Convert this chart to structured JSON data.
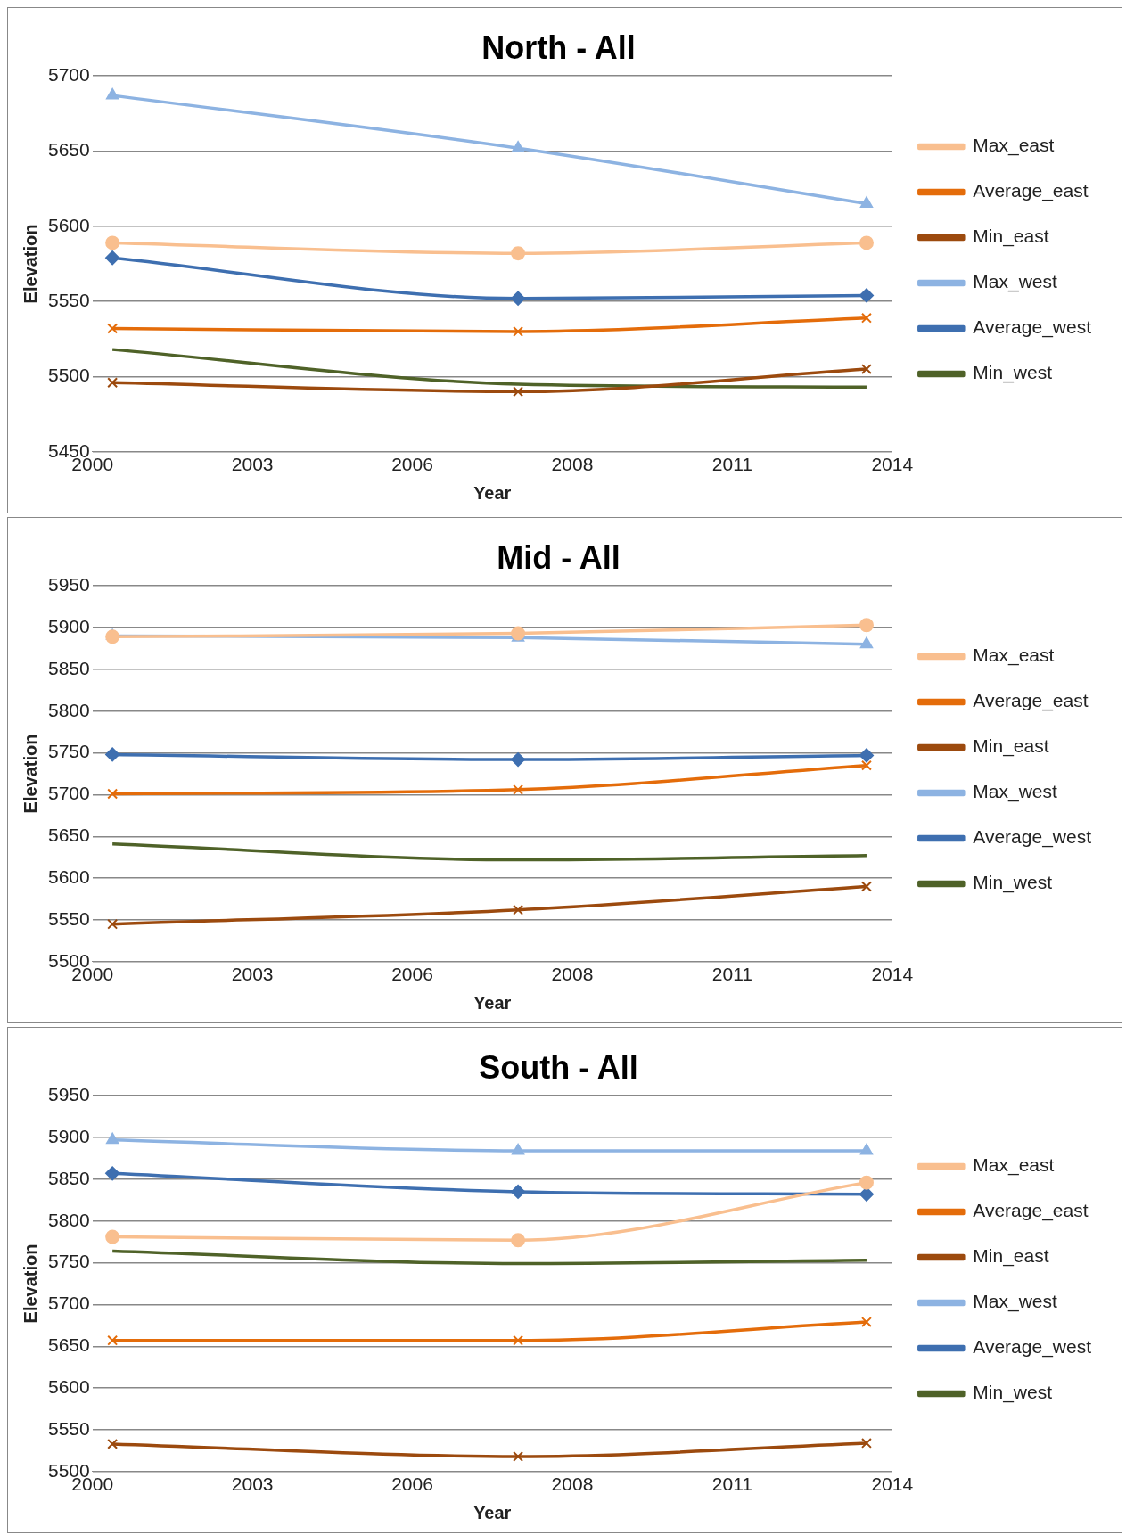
{
  "chart_data": [
    {
      "type": "line",
      "title": "North - All",
      "xlabel": "Year",
      "ylabel": "Elevation",
      "x": [
        2000.35,
        2007.45,
        2013.55
      ],
      "xlim": [
        2000,
        2014
      ],
      "xticks": [
        {
          "value": 2000,
          "label": "2000"
        },
        {
          "value": 2002.8,
          "label": "2003"
        },
        {
          "value": 2005.6,
          "label": "2006"
        },
        {
          "value": 2008.4,
          "label": "2008"
        },
        {
          "value": 2011.2,
          "label": "2011"
        },
        {
          "value": 2014,
          "label": "2014"
        }
      ],
      "ylim": [
        5450,
        5700
      ],
      "yticks": [
        5450,
        5500,
        5550,
        5600,
        5650,
        5700
      ],
      "grid": "y",
      "legend": "right",
      "series": [
        {
          "name": "Max_east",
          "color": "#f9bf8f",
          "marker": "circle",
          "values": [
            5589,
            5582,
            5589
          ]
        },
        {
          "name": "Average_east",
          "color": "#e46c0a",
          "marker": "cross",
          "values": [
            5532,
            5530,
            5539
          ]
        },
        {
          "name": "Min_east",
          "color": "#9c4a0e",
          "marker": "cross",
          "values": [
            5496,
            5490,
            5505
          ]
        },
        {
          "name": "Max_west",
          "color": "#8db3e2",
          "marker": "triangle",
          "values": [
            5687,
            5652,
            5615
          ]
        },
        {
          "name": "Average_west",
          "color": "#3e6fb0",
          "marker": "diamond",
          "values": [
            5579,
            5552,
            5554
          ]
        },
        {
          "name": "Min_west",
          "color": "#4f6228",
          "marker": "none",
          "values": [
            5518,
            5495,
            5493
          ]
        }
      ]
    },
    {
      "type": "line",
      "title": "Mid - All",
      "xlabel": "Year",
      "ylabel": "Elevation",
      "x": [
        2000.35,
        2007.45,
        2013.55
      ],
      "xlim": [
        2000,
        2014
      ],
      "xticks": [
        {
          "value": 2000,
          "label": "2000"
        },
        {
          "value": 2002.8,
          "label": "2003"
        },
        {
          "value": 2005.6,
          "label": "2006"
        },
        {
          "value": 2008.4,
          "label": "2008"
        },
        {
          "value": 2011.2,
          "label": "2011"
        },
        {
          "value": 2014,
          "label": "2014"
        }
      ],
      "ylim": [
        5500,
        5950
      ],
      "yticks": [
        5500,
        5550,
        5600,
        5650,
        5700,
        5750,
        5800,
        5850,
        5900,
        5950
      ],
      "grid": "y",
      "legend": "right",
      "series": [
        {
          "name": "Max_east",
          "color": "#f9bf8f",
          "marker": "circle",
          "values": [
            5889,
            5893,
            5903
          ]
        },
        {
          "name": "Average_east",
          "color": "#e46c0a",
          "marker": "cross",
          "values": [
            5701,
            5706,
            5735
          ]
        },
        {
          "name": "Min_east",
          "color": "#9c4a0e",
          "marker": "cross",
          "values": [
            5545,
            5562,
            5590
          ]
        },
        {
          "name": "Max_west",
          "color": "#8db3e2",
          "marker": "triangle",
          "values": [
            5890,
            5888,
            5880
          ]
        },
        {
          "name": "Average_west",
          "color": "#3e6fb0",
          "marker": "diamond",
          "values": [
            5748,
            5742,
            5747
          ]
        },
        {
          "name": "Min_west",
          "color": "#4f6228",
          "marker": "none",
          "values": [
            5641,
            5622,
            5627
          ]
        }
      ]
    },
    {
      "type": "line",
      "title": "South - All",
      "xlabel": "Year",
      "ylabel": "Elevation",
      "x": [
        2000.35,
        2007.45,
        2013.55
      ],
      "xlim": [
        2000,
        2014
      ],
      "xticks": [
        {
          "value": 2000,
          "label": "2000"
        },
        {
          "value": 2002.8,
          "label": "2003"
        },
        {
          "value": 2005.6,
          "label": "2006"
        },
        {
          "value": 2008.4,
          "label": "2008"
        },
        {
          "value": 2011.2,
          "label": "2011"
        },
        {
          "value": 2014,
          "label": "2014"
        }
      ],
      "ylim": [
        5500,
        5950
      ],
      "yticks": [
        5500,
        5550,
        5600,
        5650,
        5700,
        5750,
        5800,
        5850,
        5900,
        5950
      ],
      "grid": "y",
      "legend": "right",
      "series": [
        {
          "name": "Max_east",
          "color": "#f9bf8f",
          "marker": "circle",
          "values": [
            5781,
            5777,
            5846
          ]
        },
        {
          "name": "Average_east",
          "color": "#e46c0a",
          "marker": "cross",
          "values": [
            5657,
            5657,
            5679
          ]
        },
        {
          "name": "Min_east",
          "color": "#9c4a0e",
          "marker": "cross",
          "values": [
            5533,
            5518,
            5534
          ]
        },
        {
          "name": "Max_west",
          "color": "#8db3e2",
          "marker": "triangle",
          "values": [
            5897,
            5884,
            5884
          ]
        },
        {
          "name": "Average_west",
          "color": "#3e6fb0",
          "marker": "diamond",
          "values": [
            5857,
            5835,
            5832
          ]
        },
        {
          "name": "Min_west",
          "color": "#4f6228",
          "marker": "none",
          "values": [
            5764,
            5749,
            5753
          ]
        }
      ]
    }
  ]
}
